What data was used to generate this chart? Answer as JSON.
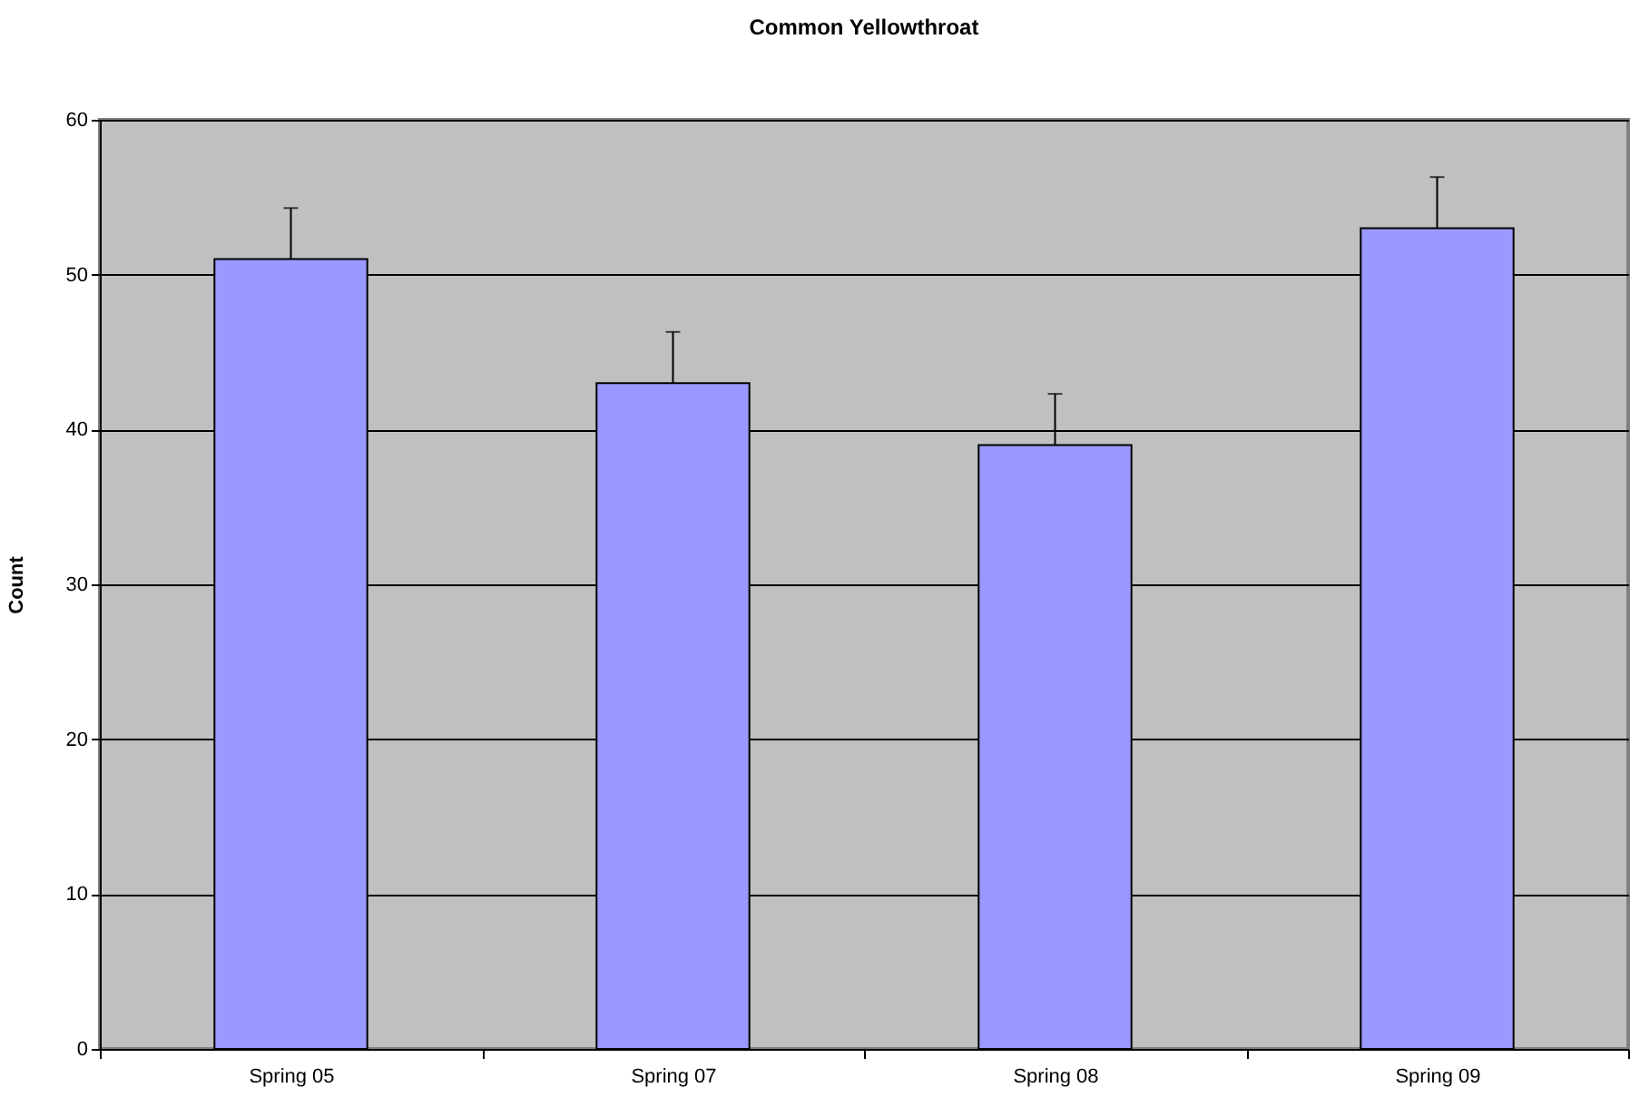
{
  "chart_data": {
    "type": "bar",
    "title": "Common Yellowthroat",
    "ylabel": "Count",
    "categories": [
      "Spring 05",
      "Spring 07",
      "Spring 08",
      "Spring 09"
    ],
    "values": [
      51,
      43,
      39,
      53
    ],
    "errors": [
      [
        51,
        54.3
      ],
      [
        43,
        46.3
      ],
      [
        39,
        42.3
      ],
      [
        53,
        56.3
      ]
    ],
    "color": "#9999ff",
    "ylim": [
      0,
      60
    ],
    "yticks": [
      0,
      10,
      20,
      30,
      40,
      50,
      60
    ],
    "grid": "y"
  }
}
